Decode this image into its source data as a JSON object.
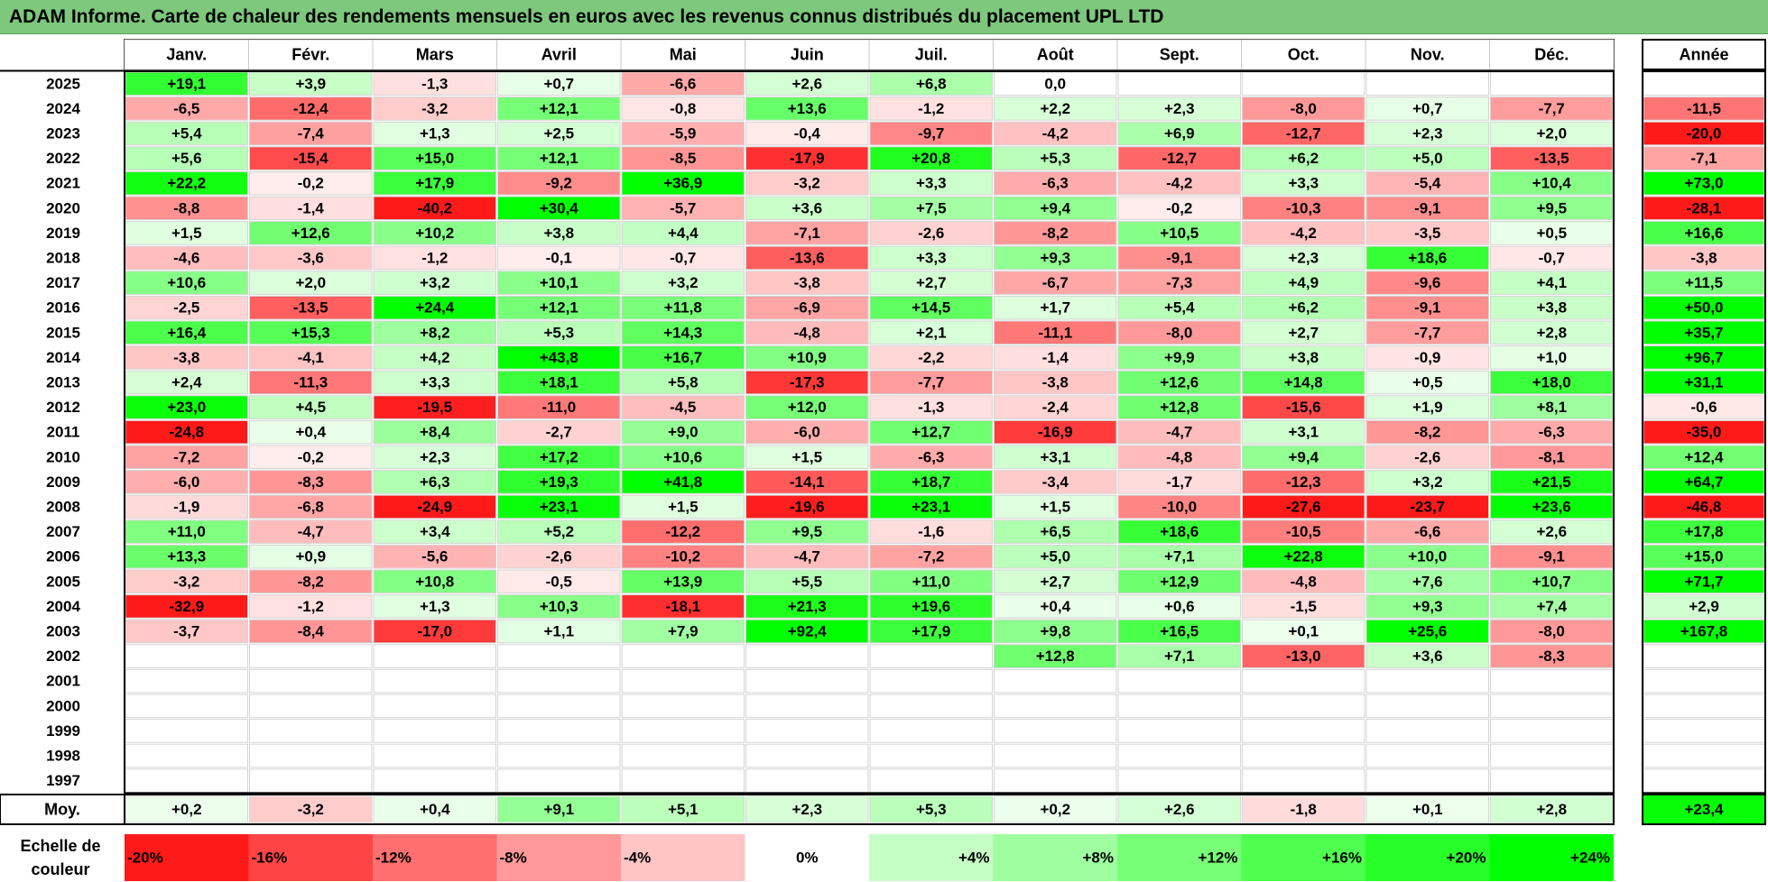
{
  "header": {
    "title": "ADAM Informe. Carte de chaleur des rendements mensuels en euros avec les revenus connus distribués du placement UPL LTD"
  },
  "colors": {
    "title_bar": "#7dc87d",
    "negative_strong": "#ff1a1a",
    "neutral": "#ffffff",
    "positive_strong": "#00ff00"
  },
  "chart_data": {
    "type": "heatmap",
    "title": "ADAM Informe. Carte de chaleur des rendements mensuels en euros avec les revenus connus distribués du placement UPL LTD",
    "units": "%",
    "columns": [
      "Janv.",
      "Févr.",
      "Mars",
      "Avril",
      "Mai",
      "Juin",
      "Juil.",
      "Août",
      "Sept.",
      "Oct.",
      "Nov.",
      "Déc."
    ],
    "year_column_label": "Année",
    "rows": [
      {
        "year": "2025",
        "values": [
          "+19,1",
          "+3,9",
          "-1,3",
          "+0,7",
          "-6,6",
          "+2,6",
          "+6,8",
          "0,0",
          "",
          "",
          "",
          ""
        ],
        "annual": ""
      },
      {
        "year": "2024",
        "values": [
          "-6,5",
          "-12,4",
          "-3,2",
          "+12,1",
          "-0,8",
          "+13,6",
          "-1,2",
          "+2,2",
          "+2,3",
          "-8,0",
          "+0,7",
          "-7,7"
        ],
        "annual": "-11,5"
      },
      {
        "year": "2023",
        "values": [
          "+5,4",
          "-7,4",
          "+1,3",
          "+2,5",
          "-5,9",
          "-0,4",
          "-9,7",
          "-4,2",
          "+6,9",
          "-12,7",
          "+2,3",
          "+2,0"
        ],
        "annual": "-20,0"
      },
      {
        "year": "2022",
        "values": [
          "+5,6",
          "-15,4",
          "+15,0",
          "+12,1",
          "-8,5",
          "-17,9",
          "+20,8",
          "+5,3",
          "-12,7",
          "+6,2",
          "+5,0",
          "-13,5"
        ],
        "annual": "-7,1"
      },
      {
        "year": "2021",
        "values": [
          "+22,2",
          "-0,2",
          "+17,9",
          "-9,2",
          "+36,9",
          "-3,2",
          "+3,3",
          "-6,3",
          "-4,2",
          "+3,3",
          "-5,4",
          "+10,4"
        ],
        "annual": "+73,0"
      },
      {
        "year": "2020",
        "values": [
          "-8,8",
          "-1,4",
          "-40,2",
          "+30,4",
          "-5,7",
          "+3,6",
          "+7,5",
          "+9,4",
          "-0,2",
          "-10,3",
          "-9,1",
          "+9,5"
        ],
        "annual": "-28,1"
      },
      {
        "year": "2019",
        "values": [
          "+1,5",
          "+12,6",
          "+10,2",
          "+3,8",
          "+4,4",
          "-7,1",
          "-2,6",
          "-8,2",
          "+10,5",
          "-4,2",
          "-3,5",
          "+0,5"
        ],
        "annual": "+16,6"
      },
      {
        "year": "2018",
        "values": [
          "-4,6",
          "-3,6",
          "-1,2",
          "-0,1",
          "-0,7",
          "-13,6",
          "+3,3",
          "+9,3",
          "-9,1",
          "+2,3",
          "+18,6",
          "-0,7"
        ],
        "annual": "-3,8"
      },
      {
        "year": "2017",
        "values": [
          "+10,6",
          "+2,0",
          "+3,2",
          "+10,1",
          "+3,2",
          "-3,8",
          "+2,7",
          "-6,7",
          "-7,3",
          "+4,9",
          "-9,6",
          "+4,1"
        ],
        "annual": "+11,5"
      },
      {
        "year": "2016",
        "values": [
          "-2,5",
          "-13,5",
          "+24,4",
          "+12,1",
          "+11,8",
          "-6,9",
          "+14,5",
          "+1,7",
          "+5,4",
          "+6,2",
          "-9,1",
          "+3,8"
        ],
        "annual": "+50,0"
      },
      {
        "year": "2015",
        "values": [
          "+16,4",
          "+15,3",
          "+8,2",
          "+5,3",
          "+14,3",
          "-4,8",
          "+2,1",
          "-11,1",
          "-8,0",
          "+2,7",
          "-7,7",
          "+2,8"
        ],
        "annual": "+35,7"
      },
      {
        "year": "2014",
        "values": [
          "-3,8",
          "-4,1",
          "+4,2",
          "+43,8",
          "+16,7",
          "+10,9",
          "-2,2",
          "-1,4",
          "+9,9",
          "+3,8",
          "-0,9",
          "+1,0"
        ],
        "annual": "+96,7"
      },
      {
        "year": "2013",
        "values": [
          "+2,4",
          "-11,3",
          "+3,3",
          "+18,1",
          "+5,8",
          "-17,3",
          "-7,7",
          "-3,8",
          "+12,6",
          "+14,8",
          "+0,5",
          "+18,0"
        ],
        "annual": "+31,1"
      },
      {
        "year": "2012",
        "values": [
          "+23,0",
          "+4,5",
          "-19,5",
          "-11,0",
          "-4,5",
          "+12,0",
          "-1,3",
          "-2,4",
          "+12,8",
          "-15,6",
          "+1,9",
          "+8,1"
        ],
        "annual": "-0,6"
      },
      {
        "year": "2011",
        "values": [
          "-24,8",
          "+0,4",
          "+8,4",
          "-2,7",
          "+9,0",
          "-6,0",
          "+12,7",
          "-16,9",
          "-4,7",
          "+3,1",
          "-8,2",
          "-6,3"
        ],
        "annual": "-35,0"
      },
      {
        "year": "2010",
        "values": [
          "-7,2",
          "-0,2",
          "+2,3",
          "+17,2",
          "+10,6",
          "+1,5",
          "-6,3",
          "+3,1",
          "-4,8",
          "+9,4",
          "-2,6",
          "-8,1"
        ],
        "annual": "+12,4"
      },
      {
        "year": "2009",
        "values": [
          "-6,0",
          "-8,3",
          "+6,3",
          "+19,3",
          "+41,8",
          "-14,1",
          "+18,7",
          "-3,4",
          "-1,7",
          "-12,3",
          "+3,2",
          "+21,5"
        ],
        "annual": "+64,7"
      },
      {
        "year": "2008",
        "values": [
          "-1,9",
          "-6,8",
          "-24,9",
          "+23,1",
          "+1,5",
          "-19,6",
          "+23,1",
          "+1,5",
          "-10,0",
          "-27,6",
          "-23,7",
          "+23,6"
        ],
        "annual": "-46,8"
      },
      {
        "year": "2007",
        "values": [
          "+11,0",
          "-4,7",
          "+3,4",
          "+5,2",
          "-12,2",
          "+9,5",
          "-1,6",
          "+6,5",
          "+18,6",
          "-10,5",
          "-6,6",
          "+2,6"
        ],
        "annual": "+17,8"
      },
      {
        "year": "2006",
        "values": [
          "+13,3",
          "+0,9",
          "-5,6",
          "-2,6",
          "-10,2",
          "-4,7",
          "-7,2",
          "+5,0",
          "+7,1",
          "+22,8",
          "+10,0",
          "-9,1"
        ],
        "annual": "+15,0"
      },
      {
        "year": "2005",
        "values": [
          "-3,2",
          "-8,2",
          "+10,8",
          "-0,5",
          "+13,9",
          "+5,5",
          "+11,0",
          "+2,7",
          "+12,9",
          "-4,8",
          "+7,6",
          "+10,7"
        ],
        "annual": "+71,7"
      },
      {
        "year": "2004",
        "values": [
          "-32,9",
          "-1,2",
          "+1,3",
          "+10,3",
          "-18,1",
          "+21,3",
          "+19,6",
          "+0,4",
          "+0,6",
          "-1,5",
          "+9,3",
          "+7,4"
        ],
        "annual": "+2,9"
      },
      {
        "year": "2003",
        "values": [
          "-3,7",
          "-8,4",
          "-17,0",
          "+1,1",
          "+7,9",
          "+92,4",
          "+17,9",
          "+9,8",
          "+16,5",
          "+0,1",
          "+25,6",
          "-8,0"
        ],
        "annual": "+167,8"
      },
      {
        "year": "2002",
        "values": [
          "",
          "",
          "",
          "",
          "",
          "",
          "",
          "+12,8",
          "+7,1",
          "-13,0",
          "+3,6",
          "-8,3"
        ],
        "annual": ""
      },
      {
        "year": "2001",
        "values": [
          "",
          "",
          "",
          "",
          "",
          "",
          "",
          "",
          "",
          "",
          "",
          ""
        ],
        "annual": ""
      },
      {
        "year": "2000",
        "values": [
          "",
          "",
          "",
          "",
          "",
          "",
          "",
          "",
          "",
          "",
          "",
          ""
        ],
        "annual": ""
      },
      {
        "year": "1999",
        "values": [
          "",
          "",
          "",
          "",
          "",
          "",
          "",
          "",
          "",
          "",
          "",
          ""
        ],
        "annual": ""
      },
      {
        "year": "1998",
        "values": [
          "",
          "",
          "",
          "",
          "",
          "",
          "",
          "",
          "",
          "",
          "",
          ""
        ],
        "annual": ""
      },
      {
        "year": "1997",
        "values": [
          "",
          "",
          "",
          "",
          "",
          "",
          "",
          "",
          "",
          "",
          "",
          ""
        ],
        "annual": ""
      }
    ],
    "average": {
      "label": "Moy.",
      "values": [
        "+0,2",
        "-3,2",
        "+0,4",
        "+9,1",
        "+5,1",
        "+2,3",
        "+5,3",
        "+0,2",
        "+2,6",
        "-1,8",
        "+0,1",
        "+2,8"
      ],
      "annual": "+23,4"
    },
    "color_scale": {
      "label_line1": "Echelle de",
      "label_line2": "couleur",
      "stops": [
        "-20%",
        "-16%",
        "-12%",
        "-8%",
        "-4%",
        "0%",
        "+4%",
        "+8%",
        "+12%",
        "+16%",
        "+20%",
        "+24%"
      ],
      "stop_values": [
        -20,
        -16,
        -12,
        -8,
        -4,
        0,
        4,
        8,
        12,
        16,
        20,
        24
      ]
    }
  }
}
